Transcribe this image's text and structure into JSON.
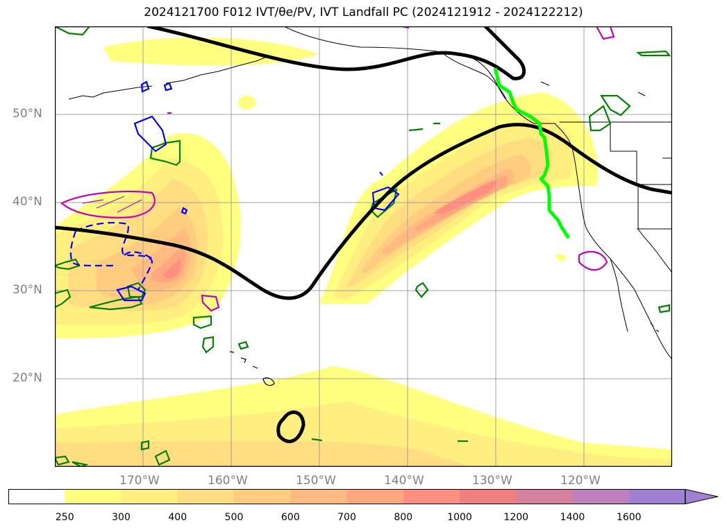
{
  "title": "2024121700 F012 IVT/θe/PV, IVT Landfall PC (2024121912 - 2024122212)",
  "map": {
    "lat_labels": [
      "50°N",
      "40°N",
      "30°N",
      "20°N"
    ],
    "lon_labels": [
      "170°W",
      "160°W",
      "150°W",
      "140°W",
      "130°W",
      "120°W"
    ]
  },
  "colorbar": {
    "levels": [
      "250",
      "300",
      "400",
      "500",
      "600",
      "700",
      "800",
      "1000",
      "1200",
      "1400",
      "1600"
    ],
    "colors": [
      "#ffffff",
      "#ffff80",
      "#ffee80",
      "#ffdd80",
      "#ffcc80",
      "#ffbb80",
      "#ffa880",
      "#ff9080",
      "#f08080",
      "#d880a0",
      "#c080c0",
      "#a080d0"
    ]
  },
  "colors": {
    "contour_black": "#000000",
    "landfall_line": "#00ff00",
    "pv_positive": "#008000",
    "pv_negative": "#0000ff",
    "theta_e": "#c000c0",
    "grid": "#a0a0a0"
  }
}
